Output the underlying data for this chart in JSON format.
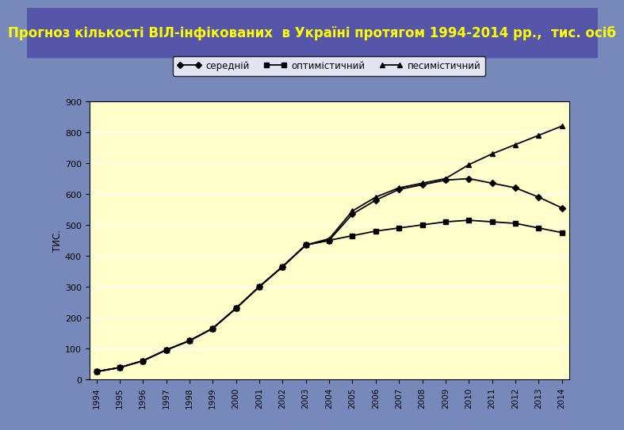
{
  "title": "Прогноз кількості ВІЛ-інфікованих  в Україні протягом 1994-2014 рр.,  тис. осіб",
  "ylabel": "ТИС.",
  "years": [
    1994,
    1995,
    1996,
    1997,
    1998,
    1999,
    2000,
    2001,
    2002,
    2003,
    2004,
    2005,
    2006,
    2007,
    2008,
    2009,
    2010,
    2011,
    2012,
    2013,
    2014
  ],
  "seredni": [
    25,
    38,
    60,
    95,
    125,
    165,
    230,
    300,
    365,
    435,
    450,
    535,
    580,
    615,
    630,
    645,
    650,
    635,
    620,
    590,
    555
  ],
  "optymistychny": [
    25,
    38,
    60,
    95,
    125,
    165,
    230,
    300,
    365,
    435,
    450,
    465,
    480,
    490,
    500,
    510,
    515,
    510,
    505,
    490,
    475
  ],
  "pesymistychny": [
    25,
    38,
    60,
    95,
    125,
    165,
    230,
    300,
    365,
    435,
    455,
    545,
    590,
    620,
    635,
    650,
    695,
    730,
    760,
    790,
    820
  ],
  "line_color": "#000000",
  "bg_color": "#ffffcc",
  "title_bg": "#5555aa",
  "title_color": "#ffff00",
  "outer_bg": "#7788bb",
  "frame_bg": "#ffffff",
  "ylim": [
    0,
    900
  ],
  "yticks": [
    0,
    100,
    200,
    300,
    400,
    500,
    600,
    700,
    800,
    900
  ]
}
